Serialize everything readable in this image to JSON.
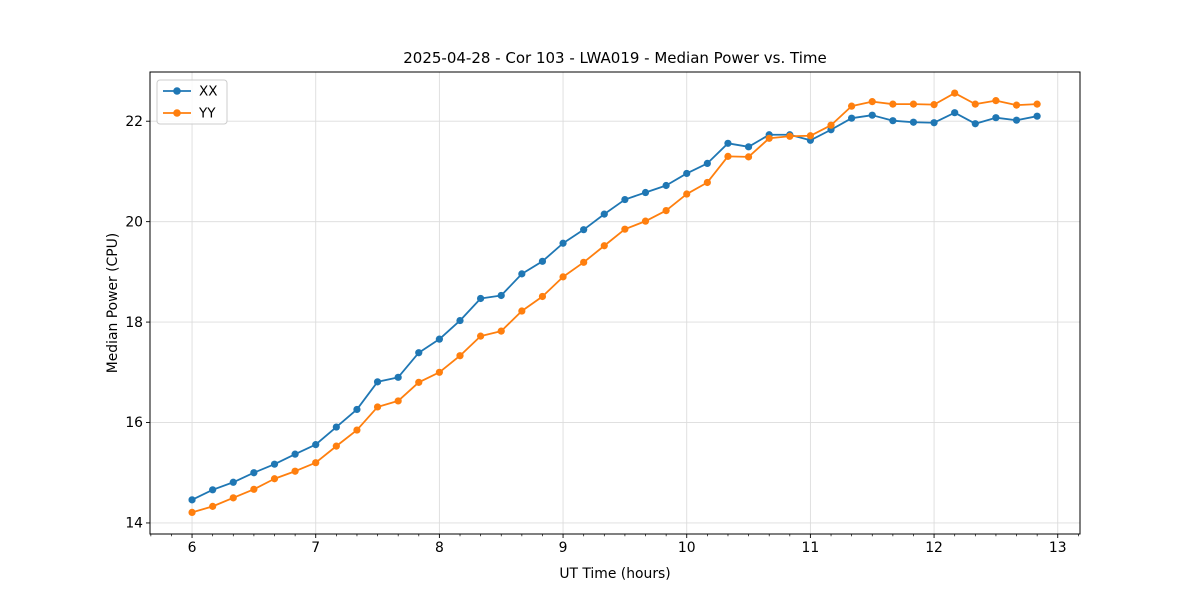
{
  "figure": {
    "title": "2025-04-28 - Cor 103 - LWA019 - Median Power vs. Time"
  },
  "chart_data": {
    "type": "line",
    "title": "2025-04-28 - Cor 103 - LWA019 - Median Power vs. Time",
    "xlabel": "UT Time (hours)",
    "ylabel": "Median Power (CPU)",
    "xlim": [
      5.66,
      13.18
    ],
    "ylim": [
      13.78,
      22.98
    ],
    "x_major_ticks": [
      6,
      7,
      8,
      9,
      10,
      11,
      12,
      13
    ],
    "y_major_ticks": [
      14,
      16,
      18,
      20,
      22
    ],
    "x_minor_tick_step": 0.16667,
    "grid": true,
    "grid_color": "#dcdcdc",
    "background": "#ffffff",
    "legend_position": "upper-left",
    "x": [
      6.0,
      6.1667,
      6.3333,
      6.5,
      6.6667,
      6.8333,
      7.0,
      7.1667,
      7.3333,
      7.5,
      7.6667,
      7.8333,
      8.0,
      8.1667,
      8.3333,
      8.5,
      8.6667,
      8.8333,
      9.0,
      9.1667,
      9.3333,
      9.5,
      9.6667,
      9.8333,
      10.0,
      10.1667,
      10.3333,
      10.5,
      10.6667,
      10.8333,
      11.0,
      11.1667,
      11.3333,
      11.5,
      11.6667,
      11.8333,
      12.0,
      12.1667,
      12.3333,
      12.5,
      12.6667,
      12.8333
    ],
    "series": [
      {
        "name": "XX",
        "color": "#1f77b4",
        "marker": "circle",
        "values": [
          14.46,
          14.66,
          14.81,
          15.0,
          15.17,
          15.37,
          15.56,
          15.91,
          16.26,
          16.81,
          16.9,
          17.39,
          17.66,
          18.03,
          18.47,
          18.53,
          18.96,
          19.21,
          19.57,
          19.84,
          20.15,
          20.44,
          20.58,
          20.72,
          20.96,
          21.16,
          21.56,
          21.49,
          21.73,
          21.73,
          21.62,
          21.83,
          22.06,
          22.12,
          22.01,
          21.98,
          21.97,
          22.17,
          21.95,
          22.07,
          22.02,
          22.1
        ]
      },
      {
        "name": "YY",
        "color": "#ff7f0e",
        "marker": "circle",
        "values": [
          14.21,
          14.33,
          14.5,
          14.67,
          14.88,
          15.03,
          15.2,
          15.53,
          15.85,
          16.31,
          16.43,
          16.8,
          17.0,
          17.33,
          17.72,
          17.82,
          18.22,
          18.51,
          18.9,
          19.19,
          19.52,
          19.85,
          20.01,
          20.22,
          20.55,
          20.78,
          21.3,
          21.29,
          21.66,
          21.7,
          21.71,
          21.92,
          22.3,
          22.39,
          22.34,
          22.34,
          22.33,
          22.56,
          22.34,
          22.41,
          22.32,
          22.34
        ]
      }
    ]
  }
}
